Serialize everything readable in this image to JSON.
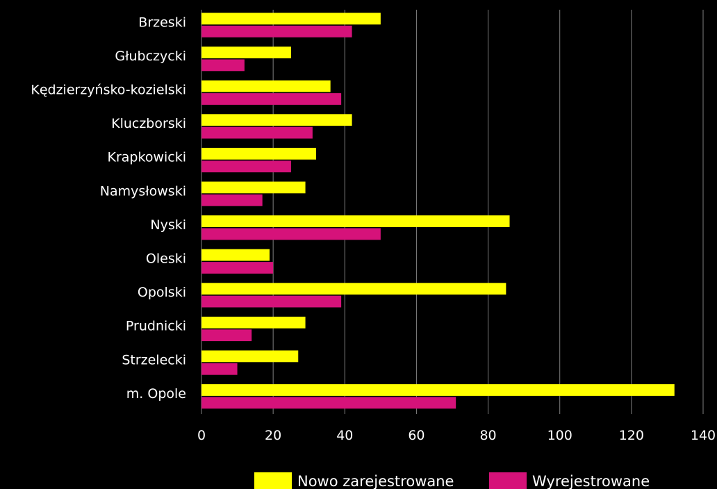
{
  "chart_data": {
    "type": "bar",
    "orientation": "horizontal",
    "categories": [
      "Brzeski",
      "Głubczycki",
      "Kędzierzyńsko-kozielski",
      "Kluczborski",
      "Krapkowicki",
      "Namysłowski",
      "Nyski",
      "Oleski",
      "Opolski",
      "Prudnicki",
      "Strzelecki",
      "m. Opole"
    ],
    "series": [
      {
        "name": "Nowo zarejestrowane",
        "color": "#ffff00",
        "values": [
          50,
          25,
          36,
          42,
          32,
          29,
          86,
          19,
          85,
          29,
          27,
          132
        ]
      },
      {
        "name": "Wyrejestrowane",
        "color": "#d6127a",
        "values": [
          42,
          12,
          39,
          31,
          25,
          17,
          50,
          20,
          39,
          14,
          10,
          71
        ]
      }
    ],
    "xlim": [
      0,
      140
    ],
    "xticks": [
      0,
      20,
      40,
      60,
      80,
      100,
      120,
      140
    ],
    "grid": true,
    "legend_position": "bottom",
    "background": "#000000",
    "gridline_color": "#7f7f7f"
  }
}
